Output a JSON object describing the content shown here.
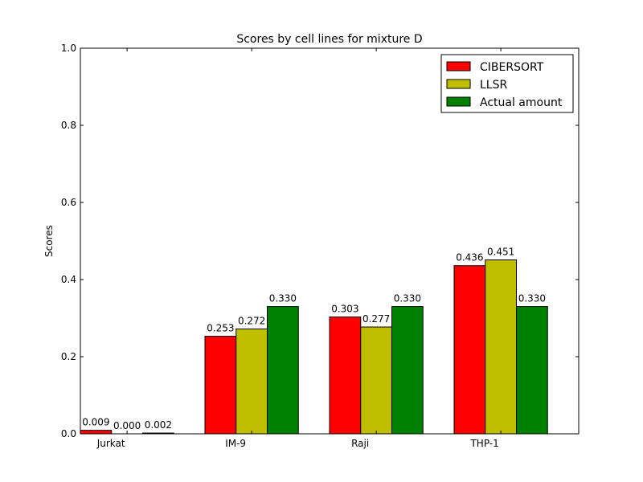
{
  "chart_data": {
    "type": "bar",
    "title": "Scores by cell lines for mixture D",
    "xlabel": "",
    "ylabel": "Scores",
    "categories": [
      "Jurkat",
      "IM-9",
      "Raji",
      "THP-1"
    ],
    "series": [
      {
        "name": "CIBERSORT",
        "color": "#ff0000",
        "values": [
          0.009,
          0.253,
          0.303,
          0.436
        ],
        "labels": [
          "0.009",
          "0.253",
          "0.303",
          "0.436"
        ]
      },
      {
        "name": "LLSR",
        "color": "#bfbf00",
        "values": [
          0.0,
          0.272,
          0.277,
          0.451
        ],
        "labels": [
          "0.000",
          "0.272",
          "0.277",
          "0.451"
        ]
      },
      {
        "name": "Actual amount",
        "color": "#008000",
        "values": [
          0.002,
          0.33,
          0.33,
          0.33
        ],
        "labels": [
          "0.002",
          "0.330",
          "0.330",
          "0.330"
        ]
      }
    ],
    "ylim": [
      0,
      1.0
    ],
    "yticks": [
      0.0,
      0.2,
      0.4,
      0.6,
      0.8,
      1.0
    ],
    "ytick_labels": [
      "0.0",
      "0.2",
      "0.4",
      "0.6",
      "0.8",
      "1.0"
    ],
    "grid": false,
    "legend_position": "top-right"
  }
}
